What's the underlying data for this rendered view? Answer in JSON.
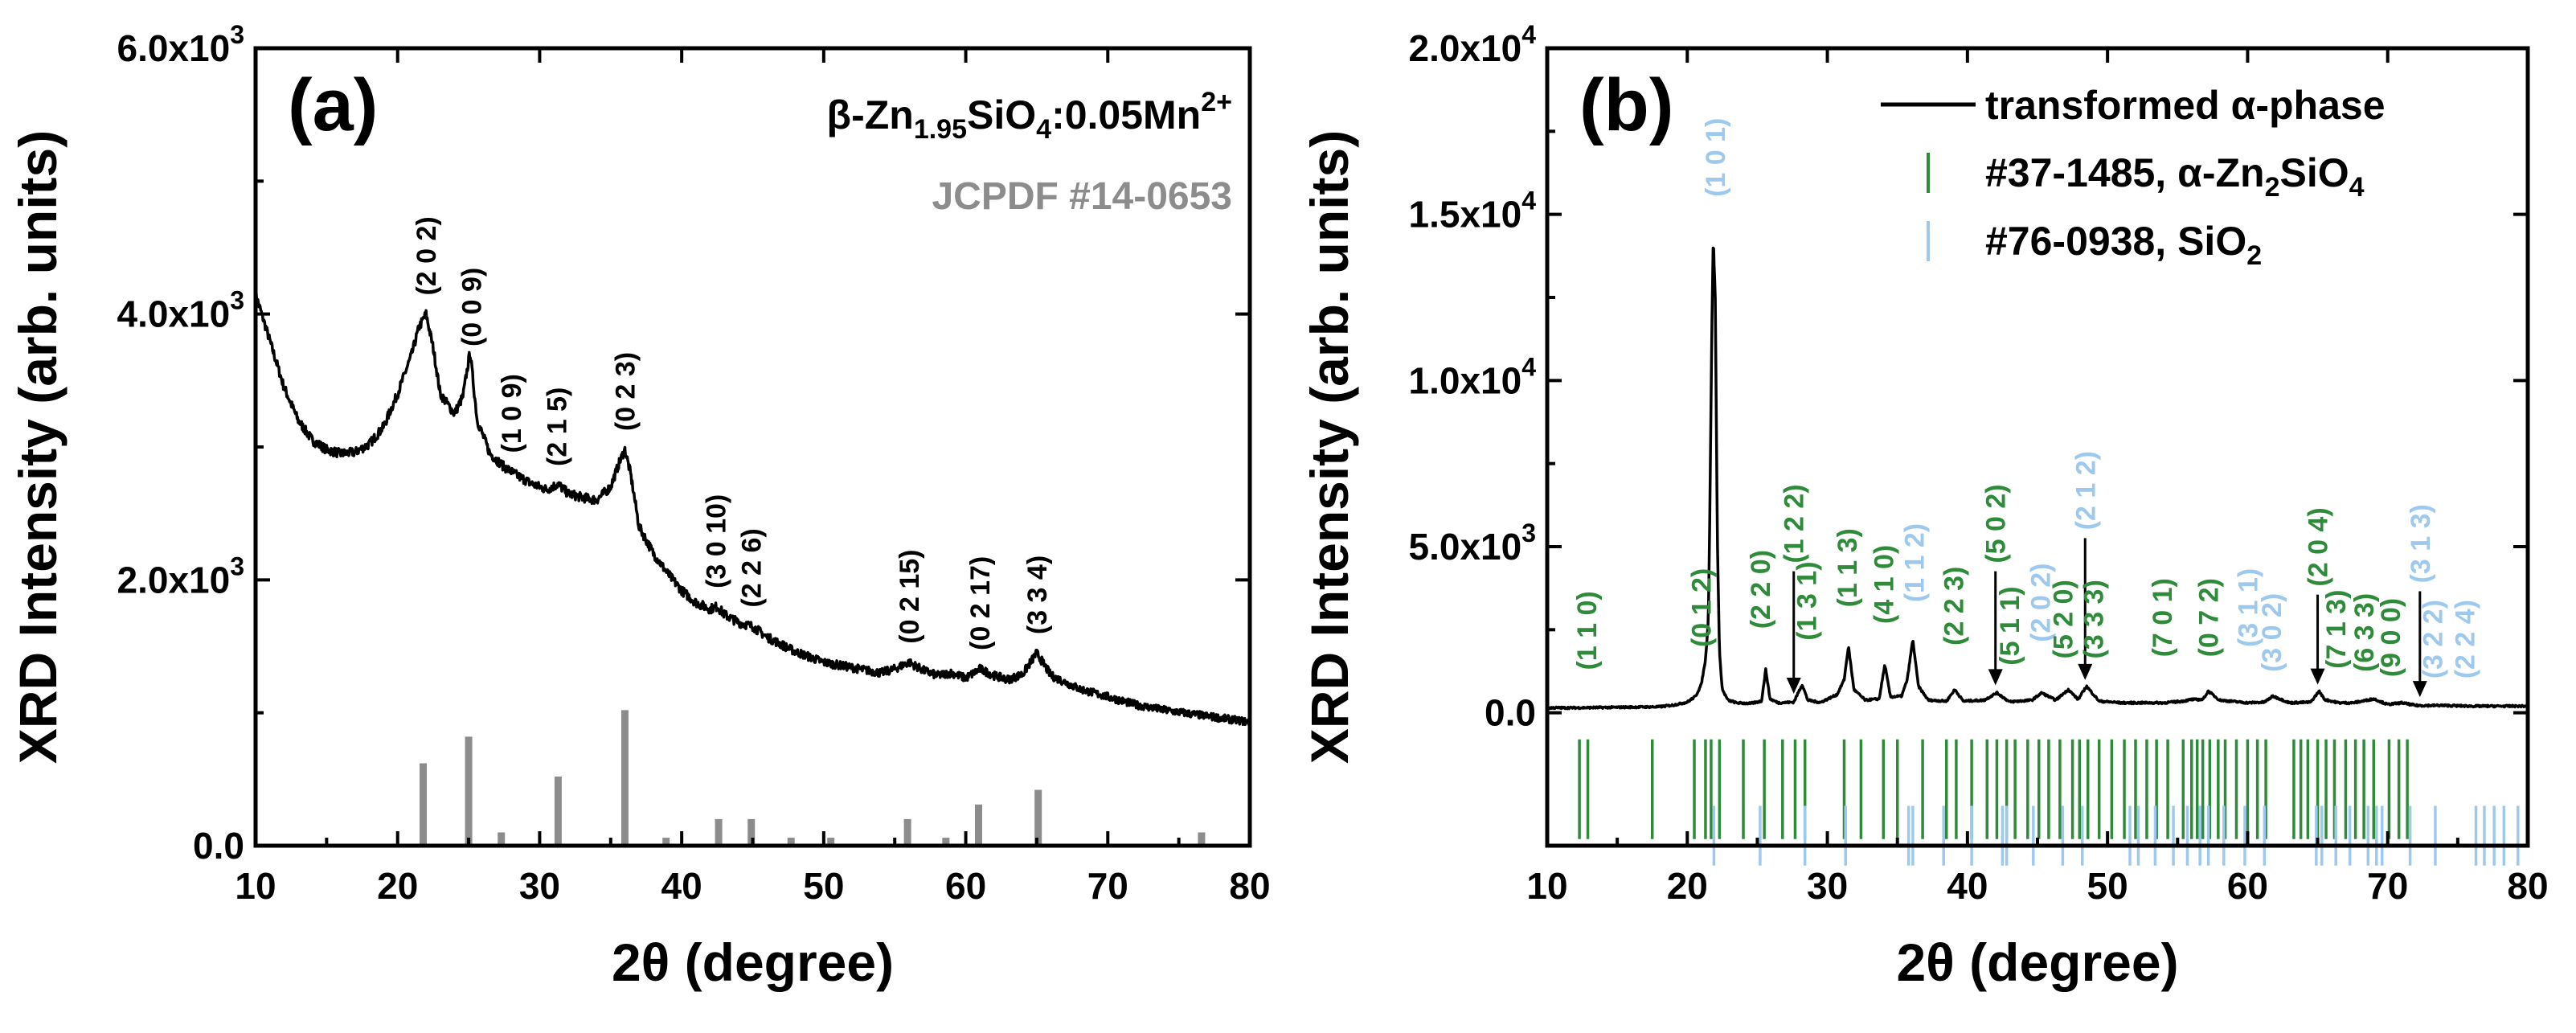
{
  "colors": {
    "axis": "#000000",
    "trace": "#000000",
    "ref_gray": "#8c8c8c",
    "green": "#2e8b3a",
    "lightblue": "#9ec9ee"
  },
  "chart_data": [
    {
      "type": "line",
      "panel": "(a)",
      "xlabel": "2θ (degree)",
      "ylabel": "XRD Intensity (arb. units)",
      "xlim": [
        10,
        80
      ],
      "ylim": [
        0,
        6000
      ],
      "xticks": [
        10,
        20,
        30,
        40,
        50,
        60,
        70,
        80
      ],
      "ytick_labels": [
        {
          "value": 0,
          "base": "0.0",
          "exp": ""
        },
        {
          "value": 2000,
          "base": "2.0x10",
          "exp": "3"
        },
        {
          "value": 4000,
          "base": "4.0x10",
          "exp": "3"
        },
        {
          "value": 6000,
          "base": "6.0x10",
          "exp": "3"
        }
      ],
      "legend": {
        "sample": {
          "prefix": "β-Zn",
          "sub1": "1.95",
          "mid": "SiO",
          "sub2": "4",
          "suffix": ":0.05Mn",
          "sup": "2+"
        },
        "reference": "JCPDF #14-0653"
      },
      "series": [
        {
          "name": "β-Zn1.95SiO4:0.05Mn2+",
          "x": [
            10,
            11,
            12,
            13,
            14,
            15,
            16,
            17,
            18,
            19,
            20,
            21,
            21.5,
            22,
            22.5,
            23,
            24,
            24.6,
            25.1,
            25.6,
            26.5,
            27.5,
            28.5,
            29.5,
            30.5,
            31.3,
            32,
            33,
            34,
            35,
            35.6,
            36,
            36.4,
            37,
            38,
            39,
            40,
            41,
            42,
            42.5,
            43,
            44,
            45,
            46,
            48,
            50,
            52,
            54,
            55,
            56,
            57,
            58,
            59,
            60,
            61,
            62,
            63,
            64,
            65,
            66,
            68,
            70,
            72,
            74,
            76,
            78,
            80
          ],
          "values": [
            4150,
            3800,
            3450,
            3200,
            3050,
            2980,
            2950,
            2960,
            3020,
            3150,
            3400,
            3700,
            3900,
            4000,
            3750,
            3400,
            3250,
            3380,
            3720,
            3200,
            2950,
            2850,
            2780,
            2720,
            2680,
            2720,
            2650,
            2620,
            2600,
            2700,
            2880,
            2980,
            2800,
            2400,
            2200,
            2050,
            1920,
            1830,
            1780,
            1800,
            1740,
            1680,
            1650,
            1570,
            1460,
            1380,
            1340,
            1300,
            1330,
            1380,
            1320,
            1280,
            1300,
            1260,
            1330,
            1280,
            1250,
            1290,
            1450,
            1280,
            1180,
            1120,
            1060,
            1020,
            990,
            960,
            930
          ]
        }
      ],
      "reference_lines": {
        "x": [
          21.8,
          25.0,
          27.3,
          31.3,
          36.0,
          38.9,
          42.6,
          44.9,
          47.7,
          50.5,
          55.9,
          58.6,
          60.9,
          65.1,
          76.6
        ],
        "values": [
          620,
          820,
          100,
          520,
          1020,
          60,
          200,
          200,
          60,
          60,
          200,
          60,
          310,
          420,
          100
        ]
      },
      "annotations": [
        {
          "text": "(2 0 2)",
          "x": 22.0,
          "rot": -90
        },
        {
          "text": "(0 0 9)",
          "x": 25.2,
          "rot": -90
        },
        {
          "text": "(1 0 9)",
          "x": 28.0,
          "rot": -90
        },
        {
          "text": "(2 1 5)",
          "x": 31.2,
          "rot": -90
        },
        {
          "text": "(0 2 3)",
          "x": 36.0,
          "rot": -90
        },
        {
          "text": "(3 0 10)",
          "x": 42.4,
          "rot": -90
        },
        {
          "text": "(2 2 6)",
          "x": 44.9,
          "rot": -90
        },
        {
          "text": "(0 2 15)",
          "x": 56.0,
          "rot": -90
        },
        {
          "text": "(0 2 17)",
          "x": 61.0,
          "rot": -90
        },
        {
          "text": "(3 3 4)",
          "x": 65.0,
          "rot": -90
        }
      ]
    },
    {
      "type": "line",
      "panel": "(b)",
      "xlabel": "2θ (degree)",
      "ylabel": "XRD Intensity (arb. units)",
      "xlim": [
        10,
        80
      ],
      "ylim": [
        -4000,
        20000
      ],
      "xticks": [
        10,
        20,
        30,
        40,
        50,
        60,
        70,
        80
      ],
      "ytick_labels": [
        {
          "value": 0,
          "base": "0.0",
          "exp": ""
        },
        {
          "value": 5000,
          "base": "5.0x10",
          "exp": "3"
        },
        {
          "value": 10000,
          "base": "1.0x10",
          "exp": "4"
        },
        {
          "value": 15000,
          "base": "1.5x10",
          "exp": "4"
        },
        {
          "value": 20000,
          "base": "2.0x10",
          "exp": "4"
        }
      ],
      "legend": {
        "trace": {
          "text": "transformed α-phase"
        },
        "green": {
          "prefix": "#37-1485, α-Zn",
          "sub1": "2",
          "mid": "SiO",
          "sub2": "4"
        },
        "blue": {
          "prefix": "#76-0938, SiO",
          "sub1": "2"
        }
      },
      "series": [
        {
          "name": "transformed α-phase",
          "x": [
            10,
            12,
            14,
            16,
            18,
            19,
            20,
            20.6,
            21.0,
            21.3,
            21.5,
            21.6,
            21.75,
            21.85,
            22.0,
            22.15,
            22.3,
            22.5,
            22.9,
            23.5,
            24.5,
            25.3,
            25.6,
            25.9,
            26.5,
            27.6,
            28.2,
            28.6,
            29.5,
            30.7,
            31.2,
            31.5,
            31.9,
            32.7,
            33.7,
            34.1,
            34.5,
            35.3,
            35.7,
            36.1,
            36.5,
            37.2,
            38.5,
            39.1,
            39.7,
            41.2,
            42.1,
            43,
            44.6,
            45.3,
            46.3,
            47.2,
            47.9,
            48.5,
            49.4,
            51,
            52.5,
            54,
            55.4,
            56,
            56.8,
            57.2,
            58,
            60,
            61.2,
            61.8,
            63,
            64.5,
            65.1,
            65.5,
            66.5,
            67.5,
            68.2,
            69,
            70,
            71,
            72,
            74,
            76,
            78,
            80
          ],
          "values": [
            150,
            150,
            160,
            170,
            180,
            230,
            320,
            500,
            850,
            1600,
            2800,
            5800,
            11500,
            14300,
            12500,
            5200,
            1800,
            700,
            380,
            300,
            280,
            350,
            1300,
            420,
            300,
            320,
            850,
            380,
            310,
            550,
            1000,
            2000,
            700,
            380,
            420,
            1450,
            480,
            500,
            1000,
            2200,
            800,
            380,
            350,
            700,
            350,
            380,
            600,
            330,
            380,
            600,
            380,
            700,
            400,
            800,
            350,
            300,
            300,
            300,
            350,
            400,
            400,
            650,
            380,
            300,
            320,
            500,
            300,
            320,
            650,
            400,
            300,
            300,
            350,
            420,
            250,
            300,
            220,
            220,
            200,
            200,
            200
          ]
        }
      ],
      "reference_lines_green": {
        "x": [
          12.3,
          12.9,
          17.5,
          20.5,
          21.3,
          21.7,
          22.3,
          24.0,
          25.5,
          26.8,
          27.7,
          28.4,
          31.2,
          32.4,
          34.0,
          35.0,
          36.8,
          38.5,
          39.2,
          40.3,
          41.4,
          42.1,
          42.8,
          43.4,
          44.3,
          45.1,
          45.8,
          46.6,
          47.5,
          48.0,
          48.6,
          49.4,
          50.3,
          51.2,
          52.0,
          52.8,
          53.5,
          54.3,
          55.4,
          56.0,
          56.4,
          56.8,
          57.3,
          57.9,
          58.4,
          59.2,
          60.0,
          60.7,
          61.3,
          63.3,
          63.8,
          64.3,
          65.0,
          65.6,
          66.2,
          67.0,
          67.7,
          68.3,
          69.0,
          70.1,
          70.8,
          71.4
        ],
        "y_range": [
          -800,
          -3800
        ]
      },
      "reference_lines_blue": {
        "x": [
          21.9,
          25.2,
          28.4,
          31.3,
          35.8,
          36.1,
          38.3,
          40.3,
          42.5,
          42.8,
          44.7,
          46.8,
          48.2,
          51.6,
          52.2,
          53.4,
          54.7,
          55.7,
          56.6,
          57.2,
          58.3,
          59.8,
          61.2,
          64.9,
          65.3,
          66.3,
          67.3,
          68.6,
          69.2,
          69.6,
          71.6,
          73.4,
          76.3,
          76.9,
          77.6,
          78.3,
          79.3
        ],
        "y_range": [
          -2800,
          -4600
        ]
      },
      "annotations": [
        {
          "text": "(1 1 0)",
          "x": 12.8,
          "y": 560,
          "color": "green",
          "arrow": false
        },
        {
          "text": "(0 1 2)",
          "x": 21.0,
          "y": 1250,
          "color": "green",
          "arrow": false
        },
        {
          "text": "(1 0 1)",
          "x": 22.0,
          "y": 14800,
          "color": "lightblue",
          "arrow": false
        },
        {
          "text": "(2 2 0)",
          "x": 25.2,
          "y": 1800,
          "color": "green",
          "arrow": false
        },
        {
          "text": "(1 2 2)",
          "x": 27.6,
          "y": 4500,
          "color": "green",
          "arrow": true
        },
        {
          "text": "(1 3 1)",
          "x": 28.5,
          "y": 1450,
          "color": "green",
          "arrow": false
        },
        {
          "text": "(1 1 3)",
          "x": 31.4,
          "y": 2450,
          "color": "green",
          "arrow": false
        },
        {
          "text": "(4 1 0)",
          "x": 34.0,
          "y": 1950,
          "color": "green",
          "arrow": false
        },
        {
          "text": "(1 1 2)",
          "x": 36.2,
          "y": 2600,
          "color": "lightblue",
          "arrow": false
        },
        {
          "text": "(2 2 3)",
          "x": 39.0,
          "y": 1300,
          "color": "green",
          "arrow": false
        },
        {
          "text": "(5 0 2)",
          "x": 42.0,
          "y": 4500,
          "color": "green",
          "arrow": true
        },
        {
          "text": "(5 1 1)",
          "x": 43.0,
          "y": 700,
          "color": "green",
          "arrow": false
        },
        {
          "text": "(2 0 2)",
          "x": 45.2,
          "y": 1400,
          "color": "lightblue",
          "arrow": false
        },
        {
          "text": "(5 2 0)",
          "x": 46.8,
          "y": 900,
          "color": "green",
          "arrow": false
        },
        {
          "text": "(2 1 2)",
          "x": 48.4,
          "y": 5500,
          "color": "lightblue",
          "arrow": true
        },
        {
          "text": "(3 3 3)",
          "x": 49.0,
          "y": 900,
          "color": "green",
          "arrow": false
        },
        {
          "text": "(7 0 1)",
          "x": 53.9,
          "y": 950,
          "color": "green",
          "arrow": false
        },
        {
          "text": "(0 7 2)",
          "x": 57.2,
          "y": 950,
          "color": "green",
          "arrow": false
        },
        {
          "text": "(3 1 1)",
          "x": 60.0,
          "y": 1250,
          "color": "lightblue",
          "arrow": false
        },
        {
          "text": "(3 0 2)",
          "x": 61.7,
          "y": 500,
          "color": "lightblue",
          "arrow": false
        },
        {
          "text": "(2 0 4)",
          "x": 65.0,
          "y": 3800,
          "color": "green",
          "arrow": true
        },
        {
          "text": "(7 1 3)",
          "x": 66.3,
          "y": 600,
          "color": "green",
          "arrow": false
        },
        {
          "text": "(6 3 3)",
          "x": 68.3,
          "y": 500,
          "color": "green",
          "arrow": false
        },
        {
          "text": "(9 0 0)",
          "x": 70.2,
          "y": 350,
          "color": "green",
          "arrow": false
        },
        {
          "text": "(3 1 3)",
          "x": 72.3,
          "y": 3900,
          "color": "lightblue",
          "arrow": true
        },
        {
          "text": "(3 2 2)",
          "x": 73.2,
          "y": 300,
          "color": "lightblue",
          "arrow": false
        },
        {
          "text": "(2 2 4)",
          "x": 75.5,
          "y": 300,
          "color": "lightblue",
          "arrow": false
        }
      ]
    }
  ]
}
